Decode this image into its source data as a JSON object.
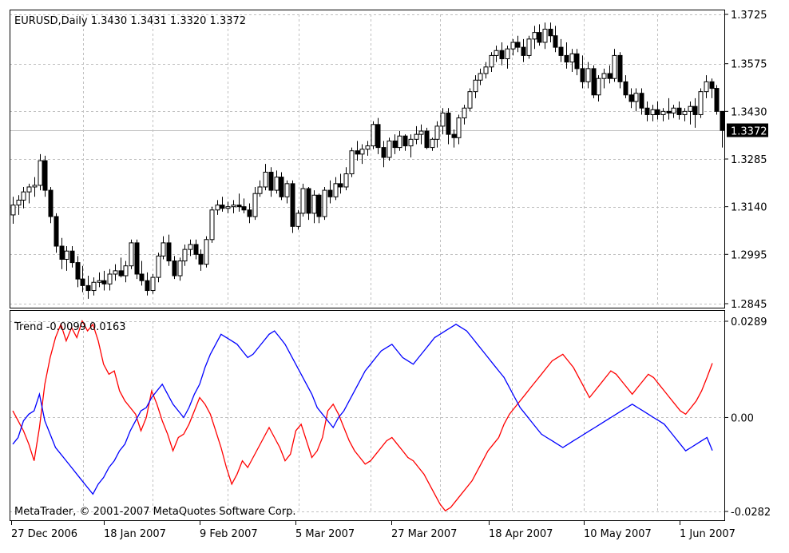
{
  "chart_data": [
    {
      "type": "candlestick",
      "title": "EURUSD,Daily  1.3430 1.3431 1.3320 1.3372",
      "ylim": [
        1.2845,
        1.3725
      ],
      "y_ticks": [
        "1.3725",
        "1.3575",
        "1.3430",
        "1.3285",
        "1.3140",
        "1.2995",
        "1.2845"
      ],
      "current_price": 1.3372,
      "current_price_label": "1.3372",
      "grid": true,
      "colors": {
        "candle": "#000000",
        "bull_body": "#ffffff",
        "bear_body": "#000000",
        "price_line": "#c0c0c0",
        "grid": "#c0c0c0"
      },
      "ohlc": [
        [
          1.3115,
          1.317,
          1.3088,
          1.3145
        ],
        [
          1.3145,
          1.3175,
          1.3115,
          1.316
        ],
        [
          1.316,
          1.32,
          1.3135,
          1.3185
        ],
        [
          1.3185,
          1.321,
          1.315,
          1.32
        ],
        [
          1.32,
          1.323,
          1.317,
          1.3205
        ],
        [
          1.3205,
          1.33,
          1.319,
          1.328
        ],
        [
          1.328,
          1.3295,
          1.317,
          1.319
        ],
        [
          1.319,
          1.32,
          1.309,
          1.311
        ],
        [
          1.311,
          1.312,
          1.3,
          1.302
        ],
        [
          1.302,
          1.3045,
          1.295,
          1.298
        ],
        [
          1.298,
          1.302,
          1.2945,
          1.3005
        ],
        [
          1.3005,
          1.302,
          1.2955,
          1.297
        ],
        [
          1.297,
          1.299,
          1.2895,
          1.292
        ],
        [
          1.292,
          1.296,
          1.288,
          1.29
        ],
        [
          1.29,
          1.293,
          1.286,
          1.2885
        ],
        [
          1.2885,
          1.2925,
          1.287,
          1.291
        ],
        [
          1.291,
          1.294,
          1.2895,
          1.2915
        ],
        [
          1.2915,
          1.2945,
          1.2885,
          1.2905
        ],
        [
          1.2905,
          1.295,
          1.2885,
          1.2935
        ],
        [
          1.2935,
          1.2965,
          1.2915,
          1.2945
        ],
        [
          1.2945,
          1.2985,
          1.2925,
          1.293
        ],
        [
          1.293,
          1.2975,
          1.291,
          1.296
        ],
        [
          1.296,
          1.304,
          1.295,
          1.303
        ],
        [
          1.303,
          1.304,
          1.292,
          1.2935
        ],
        [
          1.2935,
          1.2975,
          1.29,
          1.2915
        ],
        [
          1.2915,
          1.294,
          1.287,
          1.2885
        ],
        [
          1.2885,
          1.2935,
          1.2875,
          1.2925
        ],
        [
          1.2925,
          1.3,
          1.291,
          1.299
        ],
        [
          1.299,
          1.305,
          1.298,
          1.303
        ],
        [
          1.303,
          1.3055,
          1.296,
          1.2975
        ],
        [
          1.2975,
          1.299,
          1.292,
          1.293
        ],
        [
          1.293,
          1.2985,
          1.2915,
          1.2975
        ],
        [
          1.2975,
          1.3025,
          1.296,
          1.301
        ],
        [
          1.301,
          1.304,
          1.299,
          1.3025
        ],
        [
          1.3025,
          1.304,
          1.298,
          1.2995
        ],
        [
          1.2995,
          1.301,
          1.2945,
          1.2965
        ],
        [
          1.2965,
          1.305,
          1.2955,
          1.304
        ],
        [
          1.304,
          1.314,
          1.303,
          1.313
        ],
        [
          1.313,
          1.316,
          1.3115,
          1.3145
        ],
        [
          1.3145,
          1.317,
          1.3125,
          1.3135
        ],
        [
          1.3135,
          1.3155,
          1.312,
          1.314
        ],
        [
          1.314,
          1.316,
          1.312,
          1.3145
        ],
        [
          1.3145,
          1.318,
          1.3125,
          1.314
        ],
        [
          1.314,
          1.3165,
          1.312,
          1.313
        ],
        [
          1.313,
          1.315,
          1.309,
          1.311
        ],
        [
          1.311,
          1.32,
          1.31,
          1.318
        ],
        [
          1.318,
          1.322,
          1.317,
          1.32
        ],
        [
          1.32,
          1.327,
          1.319,
          1.3245
        ],
        [
          1.3245,
          1.326,
          1.317,
          1.319
        ],
        [
          1.319,
          1.325,
          1.318,
          1.323
        ],
        [
          1.323,
          1.3245,
          1.316,
          1.317
        ],
        [
          1.317,
          1.322,
          1.315,
          1.321
        ],
        [
          1.321,
          1.322,
          1.306,
          1.308
        ],
        [
          1.308,
          1.313,
          1.307,
          1.312
        ],
        [
          1.312,
          1.321,
          1.311,
          1.3195
        ],
        [
          1.3195,
          1.32,
          1.31,
          1.312
        ],
        [
          1.312,
          1.319,
          1.309,
          1.3175
        ],
        [
          1.3175,
          1.318,
          1.309,
          1.311
        ],
        [
          1.311,
          1.32,
          1.31,
          1.319
        ],
        [
          1.319,
          1.322,
          1.315,
          1.317
        ],
        [
          1.317,
          1.323,
          1.316,
          1.321
        ],
        [
          1.321,
          1.324,
          1.318,
          1.32
        ],
        [
          1.32,
          1.326,
          1.319,
          1.324
        ],
        [
          1.324,
          1.332,
          1.323,
          1.331
        ],
        [
          1.331,
          1.334,
          1.328,
          1.33
        ],
        [
          1.33,
          1.333,
          1.327,
          1.3315
        ],
        [
          1.3315,
          1.334,
          1.3295,
          1.3325
        ],
        [
          1.3325,
          1.34,
          1.3315,
          1.339
        ],
        [
          1.339,
          1.341,
          1.33,
          1.332
        ],
        [
          1.332,
          1.334,
          1.326,
          1.329
        ],
        [
          1.329,
          1.335,
          1.328,
          1.334
        ],
        [
          1.334,
          1.336,
          1.33,
          1.332
        ],
        [
          1.332,
          1.337,
          1.331,
          1.3355
        ],
        [
          1.3355,
          1.336,
          1.331,
          1.3325
        ],
        [
          1.3325,
          1.336,
          1.329,
          1.3345
        ],
        [
          1.3345,
          1.3385,
          1.333,
          1.336
        ],
        [
          1.336,
          1.339,
          1.333,
          1.337
        ],
        [
          1.337,
          1.338,
          1.3315,
          1.332
        ],
        [
          1.332,
          1.335,
          1.331,
          1.3345
        ],
        [
          1.3345,
          1.34,
          1.332,
          1.3385
        ],
        [
          1.3385,
          1.344,
          1.336,
          1.3425
        ],
        [
          1.3425,
          1.344,
          1.333,
          1.336
        ],
        [
          1.336,
          1.3375,
          1.332,
          1.335
        ],
        [
          1.335,
          1.342,
          1.333,
          1.341
        ],
        [
          1.341,
          1.345,
          1.339,
          1.344
        ],
        [
          1.344,
          1.35,
          1.343,
          1.349
        ],
        [
          1.349,
          1.354,
          1.347,
          1.3525
        ],
        [
          1.3525,
          1.356,
          1.351,
          1.3545
        ],
        [
          1.3545,
          1.358,
          1.353,
          1.3565
        ],
        [
          1.3565,
          1.361,
          1.355,
          1.36
        ],
        [
          1.36,
          1.363,
          1.358,
          1.3615
        ],
        [
          1.3615,
          1.364,
          1.357,
          1.359
        ],
        [
          1.359,
          1.363,
          1.356,
          1.362
        ],
        [
          1.362,
          1.365,
          1.36,
          1.364
        ],
        [
          1.364,
          1.366,
          1.361,
          1.3625
        ],
        [
          1.3625,
          1.365,
          1.358,
          1.36
        ],
        [
          1.36,
          1.366,
          1.359,
          1.365
        ],
        [
          1.365,
          1.369,
          1.362,
          1.367
        ],
        [
          1.367,
          1.3695,
          1.363,
          1.364
        ],
        [
          1.364,
          1.37,
          1.362,
          1.368
        ],
        [
          1.368,
          1.37,
          1.364,
          1.366
        ],
        [
          1.366,
          1.369,
          1.361,
          1.3625
        ],
        [
          1.3625,
          1.365,
          1.358,
          1.36
        ],
        [
          1.36,
          1.364,
          1.356,
          1.358
        ],
        [
          1.358,
          1.362,
          1.355,
          1.3605
        ],
        [
          1.3605,
          1.362,
          1.354,
          1.356
        ],
        [
          1.356,
          1.36,
          1.35,
          1.352
        ],
        [
          1.352,
          1.358,
          1.35,
          1.356
        ],
        [
          1.356,
          1.357,
          1.347,
          1.348
        ],
        [
          1.348,
          1.354,
          1.346,
          1.353
        ],
        [
          1.353,
          1.356,
          1.35,
          1.3545
        ],
        [
          1.3545,
          1.357,
          1.3515,
          1.353
        ],
        [
          1.353,
          1.362,
          1.352,
          1.36
        ],
        [
          1.36,
          1.361,
          1.35,
          1.352
        ],
        [
          1.352,
          1.354,
          1.347,
          1.348
        ],
        [
          1.348,
          1.35,
          1.344,
          1.346
        ],
        [
          1.346,
          1.35,
          1.343,
          1.3485
        ],
        [
          1.3485,
          1.35,
          1.342,
          1.344
        ],
        [
          1.344,
          1.346,
          1.34,
          1.342
        ],
        [
          1.342,
          1.345,
          1.34,
          1.3435
        ],
        [
          1.3435,
          1.346,
          1.3405,
          1.342
        ],
        [
          1.342,
          1.344,
          1.34,
          1.343
        ],
        [
          1.343,
          1.347,
          1.3405,
          1.3425
        ],
        [
          1.3425,
          1.345,
          1.341,
          1.344
        ],
        [
          1.344,
          1.346,
          1.3405,
          1.342
        ],
        [
          1.342,
          1.344,
          1.34,
          1.343
        ],
        [
          1.343,
          1.346,
          1.339,
          1.3445
        ],
        [
          1.3445,
          1.347,
          1.338,
          1.342
        ],
        [
          1.342,
          1.35,
          1.341,
          1.349
        ],
        [
          1.349,
          1.354,
          1.347,
          1.352
        ],
        [
          1.352,
          1.353,
          1.347,
          1.35
        ],
        [
          1.35,
          1.351,
          1.342,
          1.343
        ],
        [
          1.343,
          1.3431,
          1.332,
          1.3372
        ]
      ]
    },
    {
      "type": "line",
      "title": "Trend -0.0099 0.0163",
      "ylim": [
        -0.0282,
        0.0289
      ],
      "y_ticks": [
        "0.0289",
        "0.00",
        "-0.0282"
      ],
      "series": [
        {
          "color": "#ff0000",
          "values": [
            0.002,
            -0.001,
            -0.004,
            -0.008,
            -0.013,
            -0.003,
            0.01,
            0.018,
            0.024,
            0.028,
            0.023,
            0.027,
            0.024,
            0.029,
            0.026,
            0.028,
            0.023,
            0.016,
            0.013,
            0.014,
            0.008,
            0.005,
            0.003,
            0.001,
            -0.004,
            0.0,
            0.008,
            0.004,
            -0.001,
            -0.005,
            -0.01,
            -0.006,
            -0.005,
            -0.002,
            0.002,
            0.006,
            0.004,
            0.001,
            -0.004,
            -0.009,
            -0.015,
            -0.02,
            -0.017,
            -0.013,
            -0.015,
            -0.012,
            -0.009,
            -0.006,
            -0.003,
            -0.006,
            -0.009,
            -0.013,
            -0.011,
            -0.004,
            -0.002,
            -0.007,
            -0.012,
            -0.01,
            -0.006,
            0.002,
            0.004,
            0.001,
            -0.003,
            -0.007,
            -0.01,
            -0.012,
            -0.014,
            -0.013,
            -0.011,
            -0.009,
            -0.007,
            -0.006,
            -0.008,
            -0.01,
            -0.012,
            -0.013,
            -0.015,
            -0.017,
            -0.02,
            -0.023,
            -0.026,
            -0.028,
            -0.027,
            -0.025,
            -0.023,
            -0.021,
            -0.019,
            -0.016,
            -0.013,
            -0.01,
            -0.008,
            -0.006,
            -0.002,
            0.001,
            0.003,
            0.005,
            0.007,
            0.009,
            0.011,
            0.013,
            0.015,
            0.017,
            0.018,
            0.019,
            0.017,
            0.015,
            0.012,
            0.009,
            0.006,
            0.008,
            0.01,
            0.012,
            0.014,
            0.013,
            0.011,
            0.009,
            0.007,
            0.009,
            0.011,
            0.013,
            0.012,
            0.01,
            0.008,
            0.006,
            0.004,
            0.002,
            0.001,
            0.003,
            0.005,
            0.008,
            0.012,
            0.0163
          ]
        },
        {
          "color": "#0000ff",
          "values": [
            -0.008,
            -0.006,
            -0.001,
            0.001,
            0.002,
            0.007,
            -0.001,
            -0.005,
            -0.009,
            -0.011,
            -0.013,
            -0.015,
            -0.017,
            -0.019,
            -0.021,
            -0.023,
            -0.02,
            -0.018,
            -0.015,
            -0.013,
            -0.01,
            -0.008,
            -0.004,
            -0.001,
            0.002,
            0.003,
            0.006,
            0.008,
            0.01,
            0.007,
            0.004,
            0.002,
            0.0,
            0.003,
            0.007,
            0.01,
            0.015,
            0.019,
            0.022,
            0.025,
            0.024,
            0.023,
            0.022,
            0.02,
            0.018,
            0.019,
            0.021,
            0.023,
            0.025,
            0.026,
            0.024,
            0.022,
            0.019,
            0.016,
            0.013,
            0.01,
            0.007,
            0.003,
            0.001,
            -0.001,
            -0.003,
            0.0,
            0.002,
            0.005,
            0.008,
            0.011,
            0.014,
            0.016,
            0.018,
            0.02,
            0.021,
            0.022,
            0.02,
            0.018,
            0.017,
            0.016,
            0.018,
            0.02,
            0.022,
            0.024,
            0.025,
            0.026,
            0.027,
            0.028,
            0.027,
            0.026,
            0.024,
            0.022,
            0.02,
            0.018,
            0.016,
            0.014,
            0.012,
            0.009,
            0.006,
            0.003,
            0.001,
            -0.001,
            -0.003,
            -0.005,
            -0.006,
            -0.007,
            -0.008,
            -0.009,
            -0.008,
            -0.007,
            -0.006,
            -0.005,
            -0.004,
            -0.003,
            -0.002,
            -0.001,
            0.0,
            0.001,
            0.002,
            0.003,
            0.004,
            0.003,
            0.002,
            0.001,
            0.0,
            -0.001,
            -0.002,
            -0.004,
            -0.006,
            -0.008,
            -0.01,
            -0.009,
            -0.008,
            -0.007,
            -0.006,
            -0.0099
          ]
        }
      ]
    }
  ],
  "x_axis_labels": [
    "27 Dec 2006",
    "18 Jan 2007",
    "9 Feb 2007",
    "5 Mar 2007",
    "27 Mar 2007",
    "18 Apr 2007",
    "10 May 2007",
    "1 Jun 2007"
  ],
  "copyright": "MetaTrader, © 2001-2007 MetaQuotes Software Corp."
}
